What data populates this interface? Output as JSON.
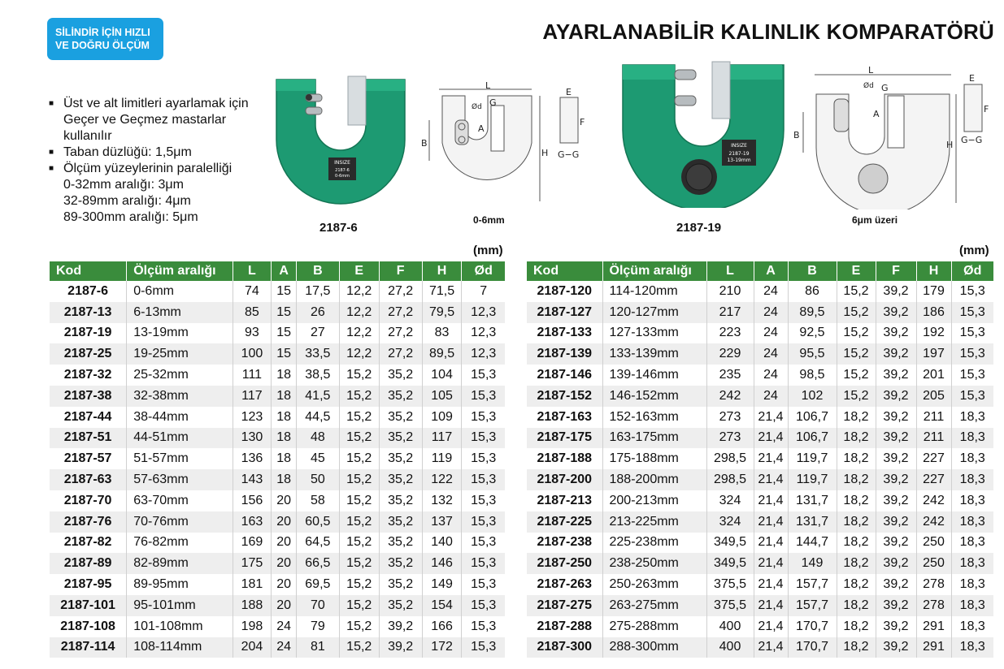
{
  "badge": {
    "line1": "SİLİNDİR İÇİN HIZLI",
    "line2": "VE DOĞRU ÖLÇÜM"
  },
  "title": "AYARLANABİLİR KALINLIK KOMPARATÖRÜ",
  "features": [
    {
      "text": "Üst ve alt limitleri ayarlamak için Geçer ve Geçmez mastarlar kullanılır"
    },
    {
      "text": "Taban düzlüğü: 1,5μm"
    },
    {
      "text": "Ölçüm yüzeylerinin paralelliği"
    }
  ],
  "parallelism": [
    "0-32mm aralığı: 3μm",
    "32-89mm aralığı: 4μm",
    "89-300mm aralığı: 5μm"
  ],
  "figures": {
    "model1": "2187-6",
    "model1_engraving": [
      "INSIZE",
      "2187-6",
      "0-6mm"
    ],
    "diagram1_caption": "0-6mm",
    "model2": "2187-19",
    "model2_engraving": [
      "INSIZE",
      "2187-19",
      "13-19mm"
    ],
    "diagram2_caption": "6μm üzeri",
    "dim_labels": {
      "L": "L",
      "A": "A",
      "B": "B",
      "E": "E",
      "F": "F",
      "H": "H",
      "G": "G",
      "d": "Ød",
      "gg": "G−G"
    }
  },
  "unit": "(mm)",
  "headers": [
    "Kod",
    "Ölçüm aralığı",
    "L",
    "A",
    "B",
    "E",
    "F",
    "H",
    "Ød"
  ],
  "left_rows": [
    [
      "2187-6",
      "0-6mm",
      "74",
      "15",
      "17,5",
      "12,2",
      "27,2",
      "71,5",
      "7"
    ],
    [
      "2187-13",
      "6-13mm",
      "85",
      "15",
      "26",
      "12,2",
      "27,2",
      "79,5",
      "12,3"
    ],
    [
      "2187-19",
      "13-19mm",
      "93",
      "15",
      "27",
      "12,2",
      "27,2",
      "83",
      "12,3"
    ],
    [
      "2187-25",
      "19-25mm",
      "100",
      "15",
      "33,5",
      "12,2",
      "27,2",
      "89,5",
      "12,3"
    ],
    [
      "2187-32",
      "25-32mm",
      "111",
      "18",
      "38,5",
      "15,2",
      "35,2",
      "104",
      "15,3"
    ],
    [
      "2187-38",
      "32-38mm",
      "117",
      "18",
      "41,5",
      "15,2",
      "35,2",
      "105",
      "15,3"
    ],
    [
      "2187-44",
      "38-44mm",
      "123",
      "18",
      "44,5",
      "15,2",
      "35,2",
      "109",
      "15,3"
    ],
    [
      "2187-51",
      "44-51mm",
      "130",
      "18",
      "48",
      "15,2",
      "35,2",
      "117",
      "15,3"
    ],
    [
      "2187-57",
      "51-57mm",
      "136",
      "18",
      "45",
      "15,2",
      "35,2",
      "119",
      "15,3"
    ],
    [
      "2187-63",
      "57-63mm",
      "143",
      "18",
      "50",
      "15,2",
      "35,2",
      "122",
      "15,3"
    ],
    [
      "2187-70",
      "63-70mm",
      "156",
      "20",
      "58",
      "15,2",
      "35,2",
      "132",
      "15,3"
    ],
    [
      "2187-76",
      "70-76mm",
      "163",
      "20",
      "60,5",
      "15,2",
      "35,2",
      "137",
      "15,3"
    ],
    [
      "2187-82",
      "76-82mm",
      "169",
      "20",
      "64,5",
      "15,2",
      "35,2",
      "140",
      "15,3"
    ],
    [
      "2187-89",
      "82-89mm",
      "175",
      "20",
      "66,5",
      "15,2",
      "35,2",
      "146",
      "15,3"
    ],
    [
      "2187-95",
      "89-95mm",
      "181",
      "20",
      "69,5",
      "15,2",
      "35,2",
      "149",
      "15,3"
    ],
    [
      "2187-101",
      "95-101mm",
      "188",
      "20",
      "70",
      "15,2",
      "35,2",
      "154",
      "15,3"
    ],
    [
      "2187-108",
      "101-108mm",
      "198",
      "24",
      "79",
      "15,2",
      "39,2",
      "166",
      "15,3"
    ],
    [
      "2187-114",
      "108-114mm",
      "204",
      "24",
      "81",
      "15,2",
      "39,2",
      "172",
      "15,3"
    ]
  ],
  "right_rows": [
    [
      "2187-120",
      "114-120mm",
      "210",
      "24",
      "86",
      "15,2",
      "39,2",
      "179",
      "15,3"
    ],
    [
      "2187-127",
      "120-127mm",
      "217",
      "24",
      "89,5",
      "15,2",
      "39,2",
      "186",
      "15,3"
    ],
    [
      "2187-133",
      "127-133mm",
      "223",
      "24",
      "92,5",
      "15,2",
      "39,2",
      "192",
      "15,3"
    ],
    [
      "2187-139",
      "133-139mm",
      "229",
      "24",
      "95,5",
      "15,2",
      "39,2",
      "197",
      "15,3"
    ],
    [
      "2187-146",
      "139-146mm",
      "235",
      "24",
      "98,5",
      "15,2",
      "39,2",
      "201",
      "15,3"
    ],
    [
      "2187-152",
      "146-152mm",
      "242",
      "24",
      "102",
      "15,2",
      "39,2",
      "205",
      "15,3"
    ],
    [
      "2187-163",
      "152-163mm",
      "273",
      "21,4",
      "106,7",
      "18,2",
      "39,2",
      "211",
      "18,3"
    ],
    [
      "2187-175",
      "163-175mm",
      "273",
      "21,4",
      "106,7",
      "18,2",
      "39,2",
      "211",
      "18,3"
    ],
    [
      "2187-188",
      "175-188mm",
      "298,5",
      "21,4",
      "119,7",
      "18,2",
      "39,2",
      "227",
      "18,3"
    ],
    [
      "2187-200",
      "188-200mm",
      "298,5",
      "21,4",
      "119,7",
      "18,2",
      "39,2",
      "227",
      "18,3"
    ],
    [
      "2187-213",
      "200-213mm",
      "324",
      "21,4",
      "131,7",
      "18,2",
      "39,2",
      "242",
      "18,3"
    ],
    [
      "2187-225",
      "213-225mm",
      "324",
      "21,4",
      "131,7",
      "18,2",
      "39,2",
      "242",
      "18,3"
    ],
    [
      "2187-238",
      "225-238mm",
      "349,5",
      "21,4",
      "144,7",
      "18,2",
      "39,2",
      "250",
      "18,3"
    ],
    [
      "2187-250",
      "238-250mm",
      "349,5",
      "21,4",
      "149",
      "18,2",
      "39,2",
      "250",
      "18,3"
    ],
    [
      "2187-263",
      "250-263mm",
      "375,5",
      "21,4",
      "157,7",
      "18,2",
      "39,2",
      "278",
      "18,3"
    ],
    [
      "2187-275",
      "263-275mm",
      "375,5",
      "21,4",
      "157,7",
      "18,2",
      "39,2",
      "278",
      "18,3"
    ],
    [
      "2187-288",
      "275-288mm",
      "400",
      "21,4",
      "170,7",
      "18,2",
      "39,2",
      "291",
      "18,3"
    ],
    [
      "2187-300",
      "288-300mm",
      "400",
      "21,4",
      "170,7",
      "18,2",
      "39,2",
      "291",
      "18,3"
    ]
  ],
  "colors": {
    "badge": "#1aa0e0",
    "header": "#3a8c3c",
    "gauge": "#1d9a72"
  }
}
